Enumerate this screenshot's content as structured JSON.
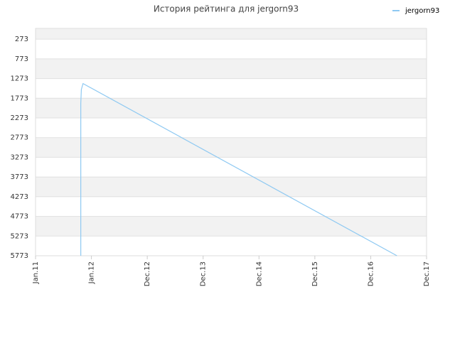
{
  "chart_data": {
    "type": "line",
    "title": "История рейтинга для jergorn93",
    "x": [
      0.81,
      0.81,
      0.82,
      0.83,
      0.85,
      6.47
    ],
    "series": [
      {
        "name": "jergorn93",
        "color": "#8ec9f2",
        "values": [
          5773,
          1900,
          1550,
          1500,
          1400,
          5773
        ]
      }
    ],
    "xlim": [
      0,
      7
    ],
    "xticks": [
      {
        "value": 0,
        "label": "Jan.11"
      },
      {
        "value": 1,
        "label": "Jan.12"
      },
      {
        "value": 2,
        "label": "Dec.12"
      },
      {
        "value": 3,
        "label": "Dec.13"
      },
      {
        "value": 4,
        "label": "Dec.14"
      },
      {
        "value": 5,
        "label": "Dec.15"
      },
      {
        "value": 6,
        "label": "Dec.16"
      },
      {
        "value": 7,
        "label": "Dec.17"
      }
    ],
    "ylim": [
      0,
      5773
    ],
    "y_inverted": true,
    "yticks": [
      273,
      773,
      1273,
      1773,
      2273,
      2773,
      3273,
      3773,
      4273,
      4773,
      5273,
      5773
    ],
    "grid": true,
    "alternate_bands": true,
    "legend": "top-right"
  }
}
